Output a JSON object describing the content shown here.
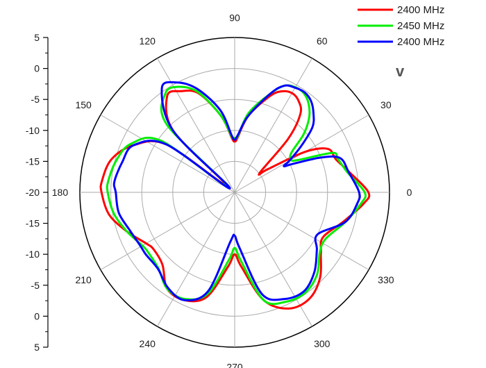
{
  "chart_data": {
    "type": "polar-line",
    "title": "",
    "radial_axis": {
      "ticks": [
        "5",
        "0",
        "-5",
        "-10",
        "-15",
        "-20",
        "-15",
        "-10",
        "-5",
        "0",
        "5"
      ],
      "range": [
        -20,
        5
      ],
      "grid": true
    },
    "angular_axis": {
      "unit": "degrees",
      "ticks": [
        "0",
        "30",
        "60",
        "90",
        "120",
        "150",
        "180",
        "210",
        "240",
        "270",
        "300",
        "330"
      ],
      "grid": true
    },
    "legend_placement": "top-right",
    "series": [
      {
        "name": "2400 MHz",
        "color": "#ff0000",
        "points": [
          [
            0,
            1.6
          ],
          [
            10,
            -1.2
          ],
          [
            18,
            -2.8
          ],
          [
            25,
            -3.4
          ],
          [
            30,
            -7.0
          ],
          [
            35,
            -13.5
          ],
          [
            38,
            -14.8
          ],
          [
            45,
            -7.8
          ],
          [
            50,
            -3.5
          ],
          [
            55,
            -2.0
          ],
          [
            60,
            -1.5
          ],
          [
            65,
            -2.0
          ],
          [
            70,
            -3.5
          ],
          [
            80,
            -7.5
          ],
          [
            87,
            -11.2
          ],
          [
            90,
            -11.8
          ],
          [
            93,
            -11.2
          ],
          [
            100,
            -7.5
          ],
          [
            110,
            -3.0
          ],
          [
            118,
            -1.5
          ],
          [
            125,
            -1.0
          ],
          [
            135,
            -6.0
          ],
          [
            140,
            -18.0
          ],
          [
            145,
            -6.5
          ],
          [
            155,
            -2.0
          ],
          [
            165,
            0.6
          ],
          [
            175,
            1.5
          ],
          [
            180,
            1.5
          ],
          [
            190,
            0.6
          ],
          [
            200,
            -1.5
          ],
          [
            210,
            -3.5
          ],
          [
            215,
            -4.0
          ],
          [
            225,
            -3.5
          ],
          [
            235,
            -1.0
          ],
          [
            245,
            -0.8
          ],
          [
            255,
            -2.5
          ],
          [
            265,
            -8.0
          ],
          [
            270,
            -10.0
          ],
          [
            275,
            -8.0
          ],
          [
            285,
            -2.0
          ],
          [
            295,
            0.7
          ],
          [
            305,
            1.0
          ],
          [
            315,
            -0.5
          ],
          [
            325,
            -3.0
          ],
          [
            333,
            -4.0
          ],
          [
            345,
            -1.8
          ],
          [
            355,
            0.9
          ]
        ]
      },
      {
        "name": "2450 MHz",
        "color": "#00ee00",
        "points": [
          [
            0,
            1.0
          ],
          [
            10,
            -1.5
          ],
          [
            18,
            -2.5
          ],
          [
            22,
            -3.0
          ],
          [
            27,
            -8.5
          ],
          [
            30,
            -9.5
          ],
          [
            35,
            -8.8
          ],
          [
            40,
            -5.5
          ],
          [
            45,
            -3.0
          ],
          [
            50,
            -1.4
          ],
          [
            55,
            -0.5
          ],
          [
            60,
            -0.4
          ],
          [
            65,
            -1.0
          ],
          [
            70,
            -3.0
          ],
          [
            80,
            -7.0
          ],
          [
            87,
            -11.0
          ],
          [
            90,
            -11.2
          ],
          [
            93,
            -11.0
          ],
          [
            100,
            -7.5
          ],
          [
            110,
            -2.8
          ],
          [
            118,
            -0.7
          ],
          [
            125,
            -0.5
          ],
          [
            135,
            -4.5
          ],
          [
            140,
            -18.5
          ],
          [
            145,
            -5.5
          ],
          [
            155,
            -1.5
          ],
          [
            165,
            -0.2
          ],
          [
            175,
            0.5
          ],
          [
            180,
            0.5
          ],
          [
            190,
            -0.2
          ],
          [
            200,
            -1.5
          ],
          [
            210,
            -2.8
          ],
          [
            215,
            -3.0
          ],
          [
            225,
            -2.6
          ],
          [
            235,
            -1.0
          ],
          [
            245,
            -1.0
          ],
          [
            255,
            -3.0
          ],
          [
            265,
            -9.0
          ],
          [
            270,
            -11.0
          ],
          [
            275,
            -9.0
          ],
          [
            285,
            -2.0
          ],
          [
            295,
            -0.5
          ],
          [
            305,
            -0.2
          ],
          [
            315,
            -1.2
          ],
          [
            325,
            -3.2
          ],
          [
            333,
            -3.5
          ],
          [
            345,
            -1.5
          ],
          [
            355,
            0.5
          ]
        ]
      },
      {
        "name": "2400 MHz",
        "color": "#0000ff",
        "points": [
          [
            0,
            0.1
          ],
          [
            10,
            -1.3
          ],
          [
            18,
            -2.1
          ],
          [
            22,
            -5.0
          ],
          [
            26,
            -9.5
          ],
          [
            28,
            -11.0
          ],
          [
            30,
            -9.8
          ],
          [
            35,
            -6.8
          ],
          [
            40,
            -3.6
          ],
          [
            45,
            -2.0
          ],
          [
            50,
            -0.8
          ],
          [
            55,
            -0.3
          ],
          [
            60,
            -0.5
          ],
          [
            65,
            -1.0
          ],
          [
            70,
            -3.0
          ],
          [
            80,
            -7.5
          ],
          [
            87,
            -10.8
          ],
          [
            90,
            -11.5
          ],
          [
            93,
            -10.8
          ],
          [
            100,
            -6.5
          ],
          [
            110,
            -2.2
          ],
          [
            118,
            0.1
          ],
          [
            125,
            0.5
          ],
          [
            135,
            -6.0
          ],
          [
            140,
            -19.0
          ],
          [
            145,
            -6.5
          ],
          [
            155,
            -2.0
          ],
          [
            165,
            -1.2
          ],
          [
            175,
            -0.5
          ],
          [
            180,
            -0.8
          ],
          [
            190,
            -1.0
          ],
          [
            200,
            -2.0
          ],
          [
            210,
            -2.5
          ],
          [
            215,
            -2.5
          ],
          [
            225,
            -2.5
          ],
          [
            235,
            -1.2
          ],
          [
            245,
            -0.8
          ],
          [
            255,
            -3.5
          ],
          [
            265,
            -12.0
          ],
          [
            270,
            -13.0
          ],
          [
            275,
            -11.0
          ],
          [
            285,
            -3.0
          ],
          [
            295,
            -1.0
          ],
          [
            305,
            -0.5
          ],
          [
            315,
            -1.8
          ],
          [
            325,
            -3.8
          ],
          [
            333,
            -5.0
          ],
          [
            345,
            -1.5
          ],
          [
            355,
            -0.1
          ]
        ]
      }
    ],
    "annotations": [
      "v"
    ]
  }
}
